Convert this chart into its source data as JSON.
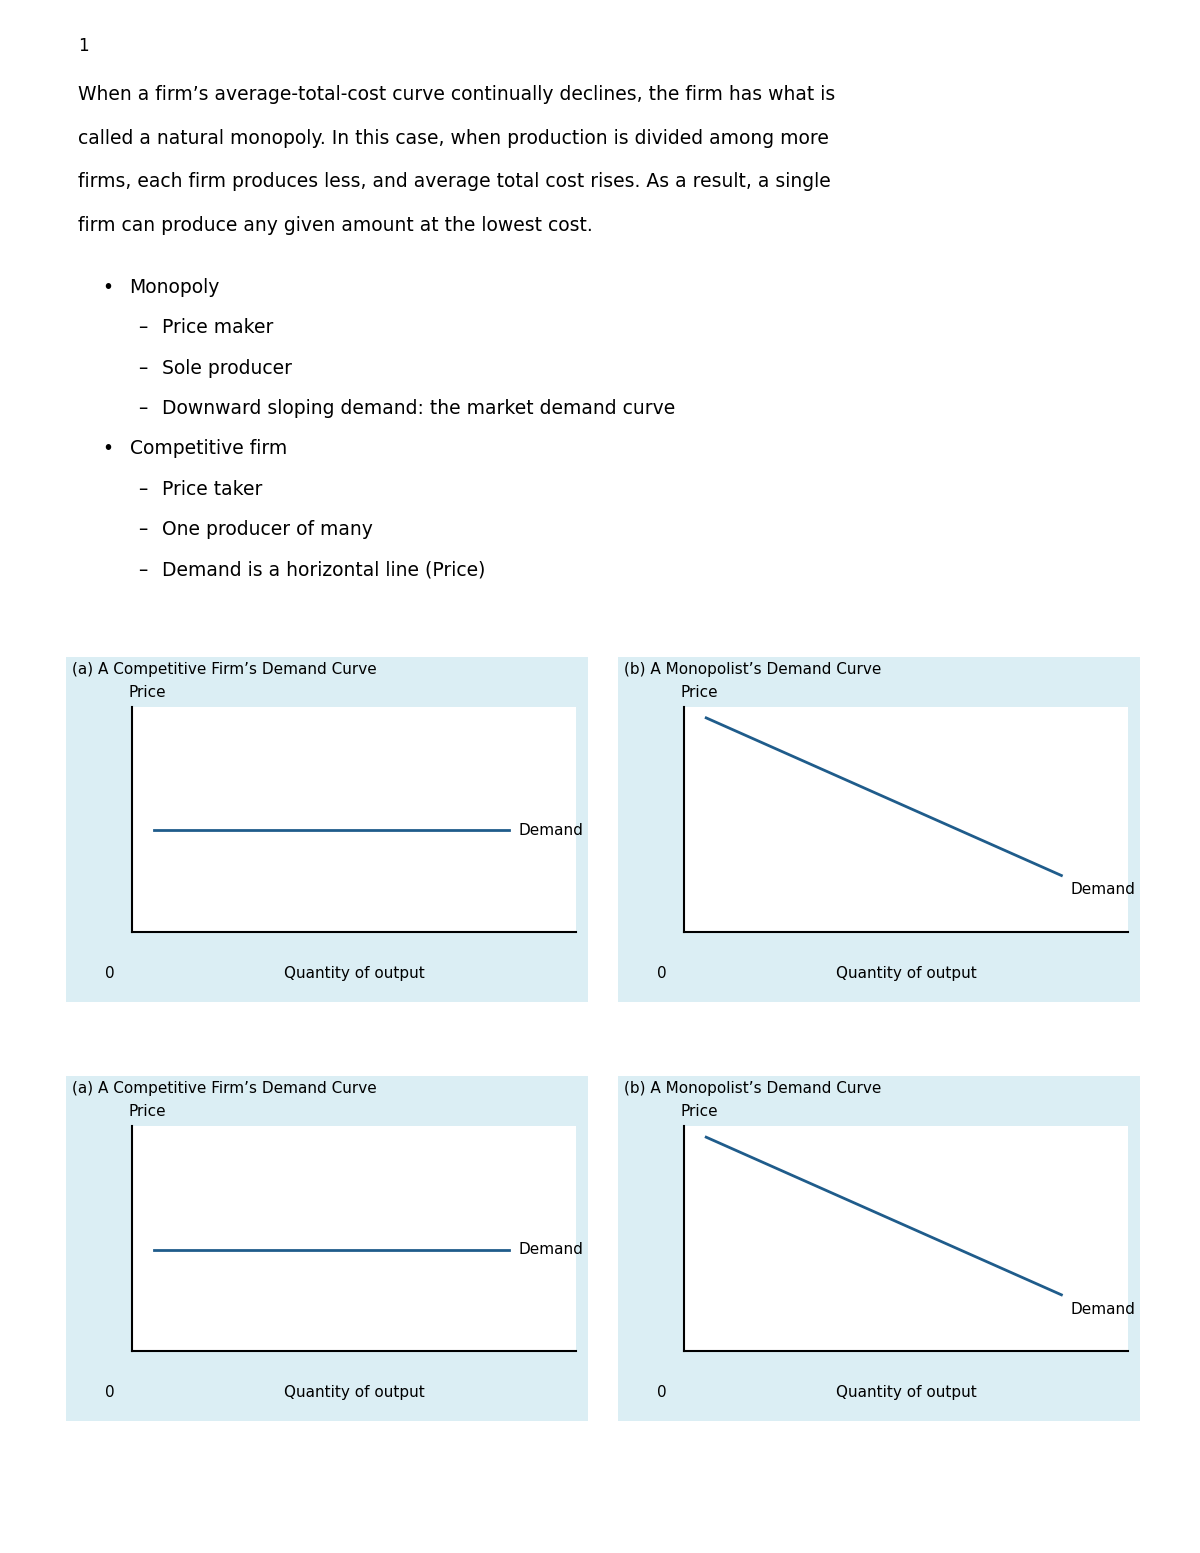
{
  "page_number": "1",
  "paragraph_lines": [
    "When a firm’s average-total-cost curve continually declines, the firm has what is",
    "called a natural monopoly. In this case, when production is divided among more",
    "firms, each firm produces less, and average total cost rises. As a result, a single",
    "firm can produce any given amount at the lowest cost."
  ],
  "bullet1": "Monopoly",
  "sub1a": "Price maker",
  "sub1b": "Sole producer",
  "sub1c": "Downward sloping demand: the market demand curve",
  "bullet2": "Competitive firm",
  "sub2a": "Price taker",
  "sub2b": "One producer of many",
  "sub2c": "Demand is a horizontal line (Price)",
  "panel_a_title": "(a) A Competitive Firm’s Demand Curve",
  "panel_b_title": "(b) A Monopolist’s Demand Curve",
  "ylabel": "Price",
  "xlabel": "Quantity of output",
  "origin_label": "0",
  "demand_label": "Demand",
  "bg_color": "#dbeef4",
  "chart_bg": "#ffffff",
  "line_color": "#1f5c8b",
  "axis_color": "#000000",
  "text_color": "#000000",
  "font_size_body": 13.5,
  "font_size_bullet": 13.5,
  "font_size_axis_label": 11,
  "font_size_panel_title": 11,
  "font_size_price_label": 11,
  "font_size_demand_label": 11,
  "font_size_page_num": 12,
  "font_size_origin": 11
}
